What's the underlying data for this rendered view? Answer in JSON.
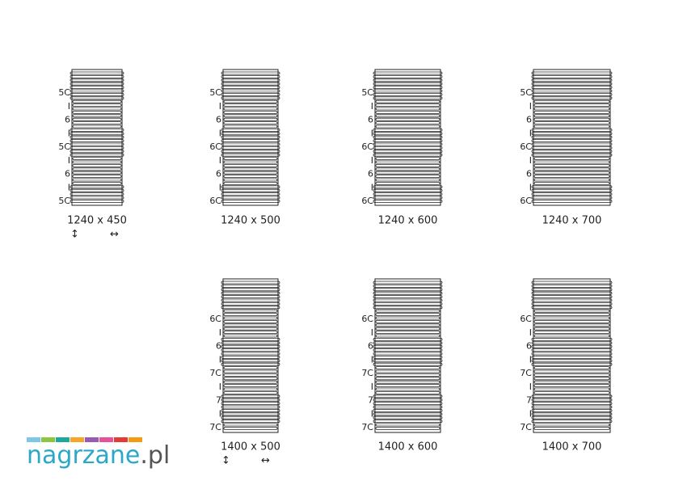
{
  "rows": [
    {
      "icons": [
        "↕",
        "↔"
      ],
      "radiators": [
        {
          "size": "1240 x 450",
          "side": [
            "5C",
            "I",
            "6",
            "I",
            "5C",
            "I",
            "6",
            "I",
            "5C"
          ]
        },
        {
          "size": "1240 x 500",
          "side": [
            "5C",
            "I",
            "6",
            "I",
            "6C",
            "I",
            "6",
            "I",
            "6C"
          ]
        },
        {
          "size": "1240 x 600",
          "side": [
            "5C",
            "I",
            "6",
            "I",
            "6C",
            "I",
            "6",
            "I",
            "6C"
          ]
        },
        {
          "size": "1240 x 700",
          "side": [
            "5C",
            "I",
            "6",
            "I",
            "6C",
            "I",
            "6",
            "I",
            "6C"
          ]
        }
      ]
    },
    {
      "icons": [
        "↕",
        "↔"
      ],
      "radiators": [
        {
          "size": "1400 x 500",
          "side": [
            "6C",
            "I",
            "6",
            "I",
            "7C",
            "I",
            "7",
            "I",
            "7C"
          ]
        },
        {
          "size": "1400 x 600",
          "side": [
            "6C",
            "I",
            "6",
            "I",
            "7C",
            "I",
            "7",
            "I",
            "7C"
          ]
        },
        {
          "size": "1400 x 700",
          "side": [
            "6C",
            "I",
            "6",
            "I",
            "7C",
            "I",
            "7",
            "I",
            "7C"
          ]
        }
      ]
    }
  ],
  "logo": {
    "name": "nagrzane",
    "tld": ".pl"
  }
}
